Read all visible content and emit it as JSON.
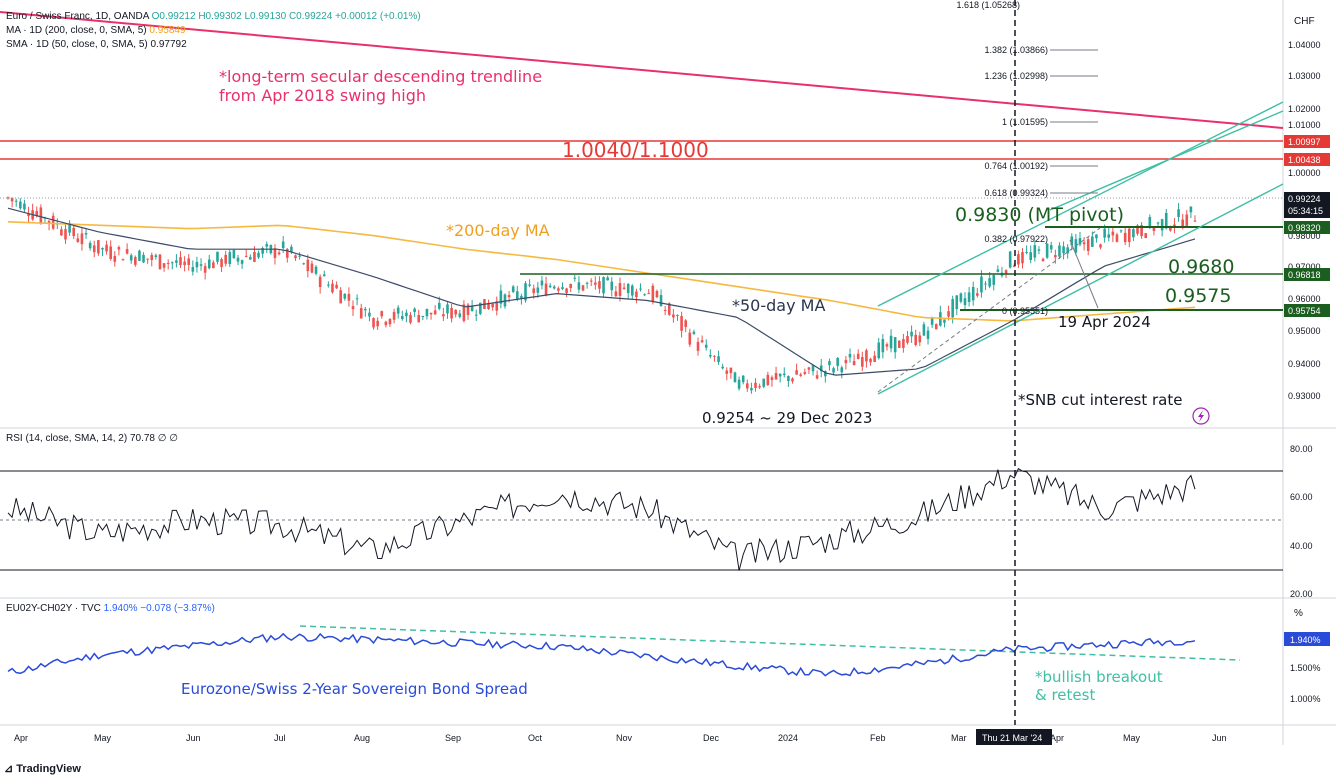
{
  "header": {
    "pair": "Euro / Swiss Franc, 1D, OANDA",
    "ohlc": "O0.99212  H0.99302  L0.99130  C0.99224  +0.00012 (+0.01%)",
    "ma200_label": "MA · 1D (200, close, 0, SMA, 5)",
    "ma200_value": "0.95849",
    "sma50_label": "SMA · 1D (50, close, 0, SMA, 5)",
    "sma50_value": "0.97792",
    "rsi_label": "RSI (14, close, SMA, 14, 2)",
    "rsi_value": "70.78  ∅  ∅",
    "spread_label": "EU02Y-CH02Y · TVC",
    "spread_value": "1.940%",
    "spread_change": "−0.078 (−3.87%)",
    "currency": "CHF",
    "pct_unit": "%"
  },
  "colors": {
    "up": "#26a69a",
    "down": "#ef5350",
    "ma200": "#f5b942",
    "sma50": "#3d4b68",
    "trendline": "#e8306a",
    "channel": "#3fbfa4",
    "support": "#1b5e20",
    "spread": "#2a4bd8",
    "resistance": "#e53935"
  },
  "x_axis": {
    "months": [
      "Apr",
      "May",
      "Jun",
      "Jul",
      "Aug",
      "Sep",
      "Oct",
      "Nov",
      "Dec",
      "2024",
      "Feb",
      "Mar",
      "Apr",
      "May",
      "Jun"
    ],
    "crosshair_label": "Thu 21 Mar '24"
  },
  "price_axis": {
    "ticks": [
      "1.04000",
      "1.03000",
      "1.02000",
      "1.01000",
      "1.00000",
      "0.98000",
      "0.97000",
      "0.96000",
      "0.95000",
      "0.94000",
      "0.93000"
    ],
    "badges": {
      "r1": "1.00997",
      "r2": "1.00438",
      "current": "0.99224",
      "countdown": "05:34:15",
      "s1": "0.98320",
      "s2": "0.96818",
      "s3": "0.95754"
    }
  },
  "rsi_axis": {
    "ticks": [
      "80.00",
      "60.00",
      "40.00",
      "20.00"
    ]
  },
  "spread_axis": {
    "ticks": [
      "1.500%",
      "1.000%"
    ],
    "current": "1.940%"
  },
  "fib": {
    "levels": [
      "1.618 (1.05268)",
      "1.382 (1.03866)",
      "1.236 (1.02998)",
      "1 (1.01595)",
      "0.764 (1.00192)",
      "0.618 (0.99324)",
      "0.382 (0.97922)",
      "0 (0.95551)"
    ]
  },
  "annotations": {
    "trendline_note_1": "*long-term secular descending trendline",
    "trendline_note_2": "from Apr 2018 swing high",
    "resistance_zone": "1.0040/1.1000",
    "ma200_note": "*200-day MA",
    "ma50_note": "*50-day MA",
    "pivot": "0.9830 (MT pivot)",
    "support_1": "0.9680",
    "support_2": "0.9575",
    "swing_low_date": "19 Apr 2024",
    "low_note": "0.9254 ~ 29 Dec 2023",
    "snb_note": "*SNB cut interest rate",
    "spread_note": "Eurozone/Swiss 2-Year Sovereign Bond Spread",
    "breakout_1": "*bullish breakout",
    "breakout_2": "& retest"
  },
  "footer": {
    "brand": "TradingView"
  },
  "chart_data": [
    {
      "type": "candlestick",
      "title": "Euro / Swiss Franc, 1D, OANDA",
      "x": [
        "2023-04",
        "2023-05",
        "2023-06",
        "2023-07",
        "2023-08",
        "2023-09",
        "2023-10",
        "2023-11",
        "2023-12",
        "2024-01",
        "2024-02",
        "2024-03",
        "2024-04",
        "2024-05"
      ],
      "series": [
        {
          "name": "Close",
          "values": [
            0.99,
            0.975,
            0.97,
            0.975,
            0.955,
            0.957,
            0.965,
            0.963,
            0.935,
            0.94,
            0.95,
            0.972,
            0.978,
            0.985
          ]
        },
        {
          "name": "MA 200",
          "values": [
            0.983,
            0.982,
            0.981,
            0.982,
            0.979,
            0.975,
            0.972,
            0.968,
            0.964,
            0.96,
            0.955,
            0.954,
            0.956,
            0.958
          ]
        },
        {
          "name": "SMA 50",
          "values": [
            0.987,
            0.98,
            0.975,
            0.975,
            0.967,
            0.958,
            0.962,
            0.96,
            0.955,
            0.938,
            0.94,
            0.954,
            0.97,
            0.978
          ]
        }
      ],
      "ylim": [
        0.925,
        1.045
      ]
    },
    {
      "type": "line",
      "title": "RSI (14, close, SMA, 14, 2)",
      "x": [
        "2023-04",
        "2023-05",
        "2023-06",
        "2023-07",
        "2023-08",
        "2023-09",
        "2023-10",
        "2023-11",
        "2023-12",
        "2024-01",
        "2024-02",
        "2024-03",
        "2024-04",
        "2024-05"
      ],
      "series": [
        {
          "name": "RSI",
          "values": [
            55,
            44,
            50,
            48,
            37,
            50,
            62,
            55,
            34,
            42,
            52,
            70,
            55,
            65
          ]
        }
      ],
      "ylim": [
        18,
        84
      ]
    },
    {
      "type": "line",
      "title": "EU02Y-CH02Y · TVC",
      "x": [
        "2023-04",
        "2023-05",
        "2023-06",
        "2023-07",
        "2023-08",
        "2023-09",
        "2023-10",
        "2023-11",
        "2023-12",
        "2024-01",
        "2024-02",
        "2024-03",
        "2024-04",
        "2024-05"
      ],
      "series": [
        {
          "name": "EU02Y-CH02Y",
          "values": [
            1.45,
            1.72,
            1.85,
            2.0,
            1.95,
            1.9,
            1.85,
            1.7,
            1.55,
            1.42,
            1.58,
            1.8,
            1.88,
            1.94
          ]
        }
      ],
      "ylim": [
        0.7,
        2.4
      ]
    }
  ]
}
